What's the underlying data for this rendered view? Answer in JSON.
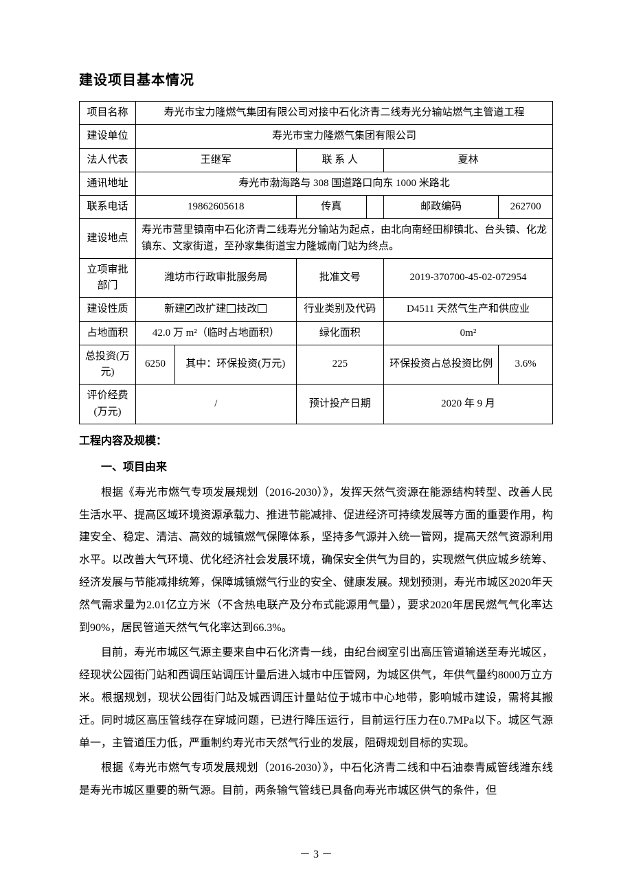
{
  "page_title": "建设项目基本情况",
  "table": {
    "r1_label": "项目名称",
    "r1_value": "寿光市宝力隆燃气集团有限公司对接中石化济青二线寿光分输站燃气主管道工程",
    "r2_label": "建设单位",
    "r2_value": "寿光市宝力隆燃气集团有限公司",
    "r3_label": "法人代表",
    "r3_v1": "王继军",
    "r3_l2": "联 系 人",
    "r3_v2": "夏林",
    "r4_label": "通讯地址",
    "r4_value": "寿光市渤海路与 308 国道路口向东 1000 米路北",
    "r5_label": "联系电话",
    "r5_v1": "19862605618",
    "r5_l2": "传真",
    "r5_v2": "",
    "r5_l3": "邮政编码",
    "r5_v3": "262700",
    "r6_label": "建设地点",
    "r6_value": "寿光市营里镇南中石化济青二线寿光分输站为起点，由北向南经田柳镇北、台头镇、化龙镇东、文家街道，至孙家集街道宝力隆城南门站为终点。",
    "r7_label": "立项审批部门",
    "r7_v1": "潍坊市行政审批服务局",
    "r7_l2": "批准文号",
    "r7_v2": "2019-370700-45-02-072954",
    "r8_label": "建设性质",
    "r8_v1_pre": "新建",
    "r8_v1_mid": "改扩建",
    "r8_v1_post": "技改",
    "r8_l2": "行业类别及代码",
    "r8_v2": "D4511 天然气生产和供应业",
    "r9_label": "占地面积",
    "r9_v1": "42.0 万 m²（临时占地面积）",
    "r9_l2": "绿化面积",
    "r9_v2": "0m²",
    "r10_label": "总投资(万元)",
    "r10_v1": "6250",
    "r10_l2": "其中：环保投资(万元)",
    "r10_v2": "225",
    "r10_l3": "环保投资占总投资比例",
    "r10_v3": "3.6%",
    "r11_label": "评价经费(万元)",
    "r11_v1": "/",
    "r11_l2": "预计投产日期",
    "r11_v2": "2020 年 9 月"
  },
  "section_title": "工程内容及规模：",
  "sub_heading": "一、项目由来",
  "para1": "根据《寿光市燃气专项发展规划（2016-2030）》，发挥天然气资源在能源结构转型、改善人民生活水平、提高区域环境资源承载力、推进节能减排、促进经济可持续发展等方面的重要作用，构建安全、稳定、清洁、高效的城镇燃气保障体系，坚持多气源并入统一管网，提高天然气资源利用水平。以改善大气环境、优化经济社会发展环境，确保安全供气为目的，实现燃气供应城乡统筹、经济发展与节能减排统筹，保障城镇燃气行业的安全、健康发展。规划预测，寿光市城区2020年天然气需求量为2.01亿立方米（不含热电联产及分布式能源用气量），要求2020年居民燃气气化率达到90%，居民管道天然气气化率达到66.3%。",
  "para2": "目前，寿光市城区气源主要来自中石化济青一线，由纪台阀室引出高压管道输送至寿光城区，经现状公园街门站和西调压站调压计量后进入城市中压管网，为城区供气，年供气量约8000万立方米。根据规划，现状公园街门站及城西调压计量站位于城市中心地带，影响城市建设，需将其搬迁。同时城区高压管线存在穿城问题，已进行降压运行，目前运行压力在0.7MPa以下。城区气源单一，主管道压力低，严重制约寿光市天然气行业的发展，阻碍规划目标的实现。",
  "para3": "根据《寿光市燃气专项发展规划（2016-2030）》，中石化济青二线和中石油泰青威管线潍东线是寿光市城区重要的新气源。目前，两条输气管线已具备向寿光市城区供气的条件，但",
  "page_number": "－ 3 －"
}
